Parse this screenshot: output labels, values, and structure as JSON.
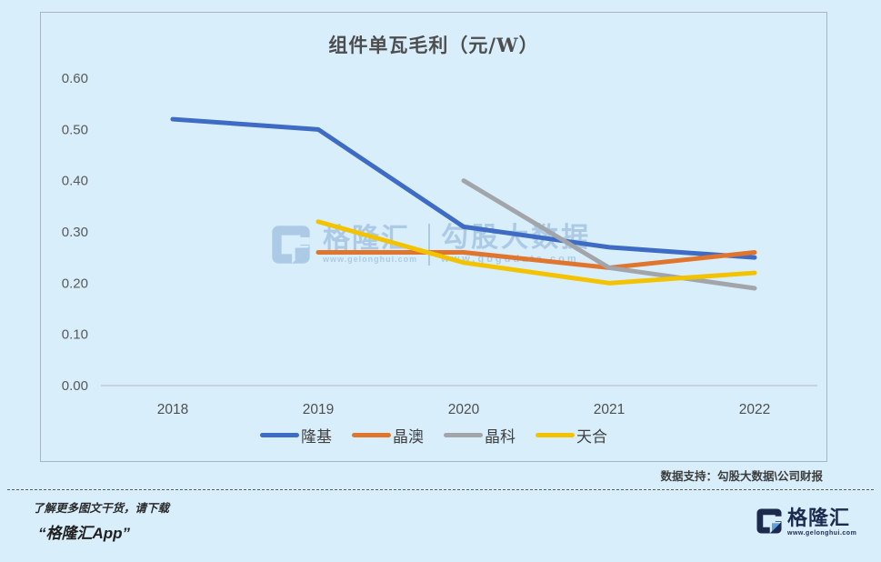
{
  "chart_data": {
    "type": "line",
    "title": "组件单瓦毛利（元/W）",
    "categories": [
      "2018",
      "2019",
      "2020",
      "2021",
      "2022"
    ],
    "series": [
      {
        "id": "longi",
        "name": "隆基",
        "color": "#3e6bc4",
        "values": [
          0.52,
          0.5,
          0.31,
          0.27,
          0.25
        ]
      },
      {
        "id": "ja-solar",
        "name": "晶澳",
        "color": "#e0752e",
        "values": [
          null,
          0.26,
          0.26,
          0.23,
          0.26
        ]
      },
      {
        "id": "jinko",
        "name": "晶科",
        "color": "#a2a6aa",
        "values": [
          null,
          null,
          0.4,
          0.23,
          0.19
        ]
      },
      {
        "id": "trina",
        "name": "天合",
        "color": "#f3c300",
        "values": [
          null,
          0.32,
          0.24,
          0.2,
          0.22
        ]
      }
    ],
    "ylim": [
      0,
      0.6
    ],
    "yticks": [
      "0.60",
      "0.50",
      "0.40",
      "0.30",
      "0.20",
      "0.10",
      "0.00"
    ],
    "grid": false,
    "legend_position": "bottom"
  },
  "watermark": {
    "brand": "格隆汇",
    "brand_url": "www.gelonghui.com",
    "partner": "勾股大数据",
    "partner_url": "www.gogudata.com"
  },
  "footer": {
    "data_support": "数据支持：勾股大数据\\公司财报",
    "promo_line1": "了解更多图文干货，请下载",
    "promo_line2": "“格隆汇App”",
    "logo_text": "格隆汇",
    "logo_url": "www.gelonghui.com"
  }
}
